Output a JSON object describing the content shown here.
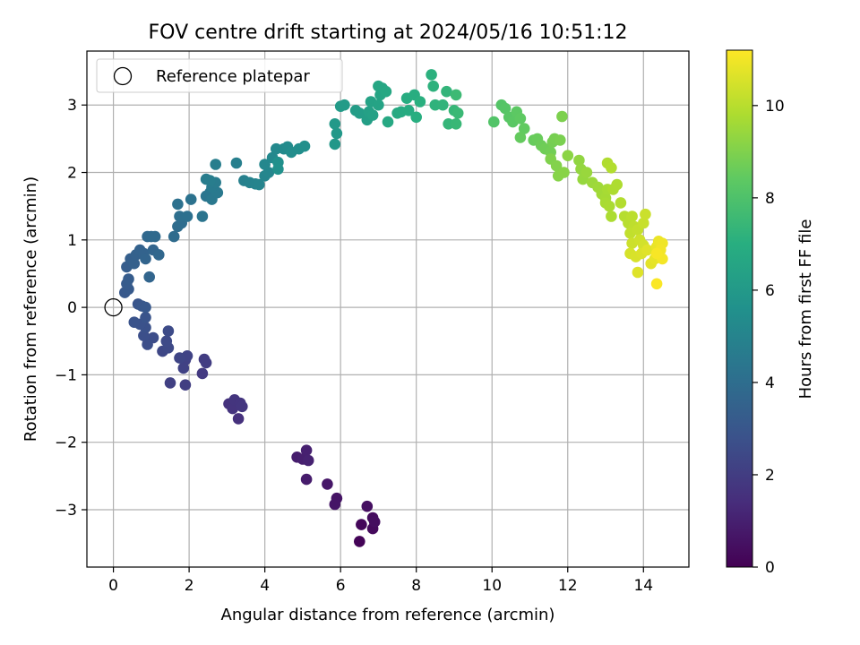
{
  "chart_data": {
    "type": "scatter",
    "title": "FOV centre drift starting at 2024/05/16 10:51:12",
    "xlabel": "Angular distance from reference (arcmin)",
    "ylabel": "Rotation from reference (arcmin)",
    "xlim": [
      -0.7,
      15.2
    ],
    "ylim": [
      -3.85,
      3.8
    ],
    "x_ticks": [
      0,
      2,
      4,
      6,
      8,
      10,
      12,
      14
    ],
    "y_ticks": [
      -3,
      -2,
      -1,
      0,
      1,
      2,
      3
    ],
    "x_tick_labels": [
      "0",
      "2",
      "4",
      "6",
      "8",
      "10",
      "12",
      "14"
    ],
    "y_tick_labels": [
      "−3",
      "−2",
      "−1",
      "0",
      "1",
      "2",
      "3"
    ],
    "grid": true,
    "legend_position": "top-left",
    "legend": [
      "Reference platepar"
    ],
    "reference_point": {
      "x": 0,
      "y": 0
    },
    "colorbar": {
      "label": "Hours from first FF file",
      "range": [
        0,
        11.2
      ],
      "ticks": [
        0,
        2,
        4,
        6,
        8,
        10
      ],
      "tick_labels": [
        "0",
        "2",
        "4",
        "6",
        "8",
        "10"
      ],
      "colormap": "viridis"
    },
    "points": [
      {
        "x": 6.5,
        "y": -3.47,
        "c": 0.1
      },
      {
        "x": 6.55,
        "y": -3.22,
        "c": 0.2
      },
      {
        "x": 6.85,
        "y": -3.28,
        "c": 0.3
      },
      {
        "x": 6.85,
        "y": -3.12,
        "c": 0.35
      },
      {
        "x": 6.9,
        "y": -3.18,
        "c": 0.4
      },
      {
        "x": 6.7,
        "y": -2.95,
        "c": 0.45
      },
      {
        "x": 5.9,
        "y": -2.83,
        "c": 0.6
      },
      {
        "x": 5.85,
        "y": -2.92,
        "c": 0.65
      },
      {
        "x": 5.65,
        "y": -2.62,
        "c": 0.7
      },
      {
        "x": 5.1,
        "y": -2.55,
        "c": 0.85
      },
      {
        "x": 4.85,
        "y": -2.22,
        "c": 0.9
      },
      {
        "x": 5.0,
        "y": -2.25,
        "c": 0.95
      },
      {
        "x": 5.1,
        "y": -2.12,
        "c": 1.0
      },
      {
        "x": 5.15,
        "y": -2.27,
        "c": 1.05
      },
      {
        "x": 3.3,
        "y": -1.65,
        "c": 1.55
      },
      {
        "x": 3.05,
        "y": -1.43,
        "c": 1.6
      },
      {
        "x": 3.15,
        "y": -1.5,
        "c": 1.65
      },
      {
        "x": 3.2,
        "y": -1.37,
        "c": 1.7
      },
      {
        "x": 3.35,
        "y": -1.42,
        "c": 1.72
      },
      {
        "x": 3.4,
        "y": -1.47,
        "c": 1.75
      },
      {
        "x": 2.35,
        "y": -0.98,
        "c": 1.9
      },
      {
        "x": 2.4,
        "y": -0.77,
        "c": 1.95
      },
      {
        "x": 2.45,
        "y": -0.82,
        "c": 2.0
      },
      {
        "x": 1.9,
        "y": -1.15,
        "c": 2.05
      },
      {
        "x": 1.5,
        "y": -1.12,
        "c": 2.1
      },
      {
        "x": 1.9,
        "y": -0.78,
        "c": 2.15
      },
      {
        "x": 1.85,
        "y": -0.9,
        "c": 2.2
      },
      {
        "x": 1.95,
        "y": -0.72,
        "c": 2.25
      },
      {
        "x": 1.75,
        "y": -0.75,
        "c": 2.3
      },
      {
        "x": 1.3,
        "y": -0.65,
        "c": 2.4
      },
      {
        "x": 1.45,
        "y": -0.6,
        "c": 2.45
      },
      {
        "x": 1.4,
        "y": -0.5,
        "c": 2.5
      },
      {
        "x": 1.45,
        "y": -0.35,
        "c": 2.55
      },
      {
        "x": 1.05,
        "y": -0.45,
        "c": 2.6
      },
      {
        "x": 0.9,
        "y": -0.55,
        "c": 2.65
      },
      {
        "x": 0.8,
        "y": -0.42,
        "c": 2.7
      },
      {
        "x": 0.85,
        "y": -0.3,
        "c": 2.75
      },
      {
        "x": 0.7,
        "y": -0.25,
        "c": 2.8
      },
      {
        "x": 0.55,
        "y": -0.22,
        "c": 2.85
      },
      {
        "x": 0.85,
        "y": -0.15,
        "c": 2.9
      },
      {
        "x": 0.65,
        "y": 0.05,
        "c": 2.95
      },
      {
        "x": 0.75,
        "y": 0.02,
        "c": 3.0
      },
      {
        "x": 0.85,
        "y": 0.0,
        "c": 3.05
      },
      {
        "x": 0.3,
        "y": 0.22,
        "c": 3.1
      },
      {
        "x": 0.4,
        "y": 0.27,
        "c": 3.15
      },
      {
        "x": 0.35,
        "y": 0.35,
        "c": 3.2
      },
      {
        "x": 0.4,
        "y": 0.42,
        "c": 3.25
      },
      {
        "x": 0.35,
        "y": 0.6,
        "c": 3.3
      },
      {
        "x": 0.45,
        "y": 0.72,
        "c": 3.35
      },
      {
        "x": 0.55,
        "y": 0.65,
        "c": 3.4
      },
      {
        "x": 0.6,
        "y": 0.78,
        "c": 3.45
      },
      {
        "x": 0.7,
        "y": 0.85,
        "c": 3.5
      },
      {
        "x": 0.8,
        "y": 0.8,
        "c": 3.55
      },
      {
        "x": 0.85,
        "y": 0.72,
        "c": 3.6
      },
      {
        "x": 0.95,
        "y": 0.45,
        "c": 3.62
      },
      {
        "x": 1.05,
        "y": 0.85,
        "c": 3.65
      },
      {
        "x": 1.2,
        "y": 0.78,
        "c": 3.7
      },
      {
        "x": 0.9,
        "y": 1.05,
        "c": 3.75
      },
      {
        "x": 1.0,
        "y": 1.05,
        "c": 3.8
      },
      {
        "x": 1.1,
        "y": 1.05,
        "c": 3.85
      },
      {
        "x": 1.6,
        "y": 1.05,
        "c": 3.9
      },
      {
        "x": 1.7,
        "y": 1.2,
        "c": 3.95
      },
      {
        "x": 1.8,
        "y": 1.25,
        "c": 4.0
      },
      {
        "x": 1.75,
        "y": 1.35,
        "c": 4.05
      },
      {
        "x": 1.95,
        "y": 1.35,
        "c": 4.1
      },
      {
        "x": 1.7,
        "y": 1.53,
        "c": 4.15
      },
      {
        "x": 2.05,
        "y": 1.6,
        "c": 4.2
      },
      {
        "x": 2.35,
        "y": 1.35,
        "c": 4.3
      },
      {
        "x": 2.45,
        "y": 1.65,
        "c": 4.35
      },
      {
        "x": 2.55,
        "y": 1.7,
        "c": 4.4
      },
      {
        "x": 2.6,
        "y": 1.6,
        "c": 4.45
      },
      {
        "x": 2.75,
        "y": 1.7,
        "c": 4.5
      },
      {
        "x": 2.6,
        "y": 1.78,
        "c": 4.55
      },
      {
        "x": 2.7,
        "y": 1.85,
        "c": 4.6
      },
      {
        "x": 2.45,
        "y": 1.9,
        "c": 4.65
      },
      {
        "x": 2.55,
        "y": 1.88,
        "c": 4.7
      },
      {
        "x": 2.7,
        "y": 2.12,
        "c": 4.75
      },
      {
        "x": 3.25,
        "y": 2.14,
        "c": 4.8
      },
      {
        "x": 3.45,
        "y": 1.88,
        "c": 4.85
      },
      {
        "x": 3.6,
        "y": 1.85,
        "c": 4.9
      },
      {
        "x": 3.75,
        "y": 1.83,
        "c": 4.95
      },
      {
        "x": 3.85,
        "y": 1.82,
        "c": 5.0
      },
      {
        "x": 4.0,
        "y": 1.95,
        "c": 5.05
      },
      {
        "x": 4.1,
        "y": 2.0,
        "c": 5.1
      },
      {
        "x": 4.0,
        "y": 2.12,
        "c": 5.15
      },
      {
        "x": 4.2,
        "y": 2.22,
        "c": 5.2
      },
      {
        "x": 4.3,
        "y": 2.35,
        "c": 5.25
      },
      {
        "x": 4.5,
        "y": 2.35,
        "c": 5.3
      },
      {
        "x": 4.6,
        "y": 2.38,
        "c": 5.35
      },
      {
        "x": 4.7,
        "y": 2.3,
        "c": 5.4
      },
      {
        "x": 4.9,
        "y": 2.35,
        "c": 5.45
      },
      {
        "x": 5.05,
        "y": 2.39,
        "c": 5.5
      },
      {
        "x": 4.35,
        "y": 2.15,
        "c": 5.55
      },
      {
        "x": 4.35,
        "y": 2.05,
        "c": 5.6
      },
      {
        "x": 5.85,
        "y": 2.42,
        "c": 5.9
      },
      {
        "x": 5.9,
        "y": 2.58,
        "c": 5.95
      },
      {
        "x": 5.85,
        "y": 2.72,
        "c": 6.0
      },
      {
        "x": 6.0,
        "y": 2.98,
        "c": 6.05
      },
      {
        "x": 6.1,
        "y": 3.0,
        "c": 6.1
      },
      {
        "x": 6.4,
        "y": 2.92,
        "c": 6.15
      },
      {
        "x": 6.5,
        "y": 2.88,
        "c": 6.2
      },
      {
        "x": 6.7,
        "y": 2.78,
        "c": 6.25
      },
      {
        "x": 6.75,
        "y": 2.9,
        "c": 6.3
      },
      {
        "x": 6.85,
        "y": 2.85,
        "c": 6.35
      },
      {
        "x": 6.8,
        "y": 3.05,
        "c": 6.4
      },
      {
        "x": 7.0,
        "y": 3.0,
        "c": 6.45
      },
      {
        "x": 7.05,
        "y": 3.15,
        "c": 6.5
      },
      {
        "x": 7.1,
        "y": 3.25,
        "c": 6.55
      },
      {
        "x": 7.0,
        "y": 3.28,
        "c": 6.6
      },
      {
        "x": 7.2,
        "y": 3.2,
        "c": 6.65
      },
      {
        "x": 7.25,
        "y": 2.75,
        "c": 6.7
      },
      {
        "x": 7.5,
        "y": 2.88,
        "c": 6.75
      },
      {
        "x": 7.6,
        "y": 2.9,
        "c": 6.8
      },
      {
        "x": 7.8,
        "y": 2.92,
        "c": 6.85
      },
      {
        "x": 7.75,
        "y": 3.1,
        "c": 6.9
      },
      {
        "x": 7.95,
        "y": 3.15,
        "c": 6.95
      },
      {
        "x": 8.0,
        "y": 2.82,
        "c": 7.0
      },
      {
        "x": 8.1,
        "y": 3.05,
        "c": 7.05
      },
      {
        "x": 8.4,
        "y": 3.45,
        "c": 7.1
      },
      {
        "x": 8.45,
        "y": 3.28,
        "c": 7.15
      },
      {
        "x": 8.5,
        "y": 3.0,
        "c": 7.2
      },
      {
        "x": 8.7,
        "y": 3.0,
        "c": 7.25
      },
      {
        "x": 8.8,
        "y": 3.2,
        "c": 7.3
      },
      {
        "x": 8.85,
        "y": 2.72,
        "c": 7.35
      },
      {
        "x": 9.0,
        "y": 2.92,
        "c": 7.4
      },
      {
        "x": 9.05,
        "y": 2.72,
        "c": 7.45
      },
      {
        "x": 9.1,
        "y": 2.88,
        "c": 7.5
      },
      {
        "x": 9.05,
        "y": 3.15,
        "c": 7.55
      },
      {
        "x": 10.05,
        "y": 2.75,
        "c": 8.1
      },
      {
        "x": 10.25,
        "y": 3.0,
        "c": 8.15
      },
      {
        "x": 10.35,
        "y": 2.95,
        "c": 8.2
      },
      {
        "x": 10.45,
        "y": 2.82,
        "c": 8.25
      },
      {
        "x": 10.55,
        "y": 2.75,
        "c": 8.3
      },
      {
        "x": 10.65,
        "y": 2.9,
        "c": 8.35
      },
      {
        "x": 10.75,
        "y": 2.8,
        "c": 8.4
      },
      {
        "x": 10.85,
        "y": 2.65,
        "c": 8.45
      },
      {
        "x": 10.75,
        "y": 2.52,
        "c": 8.5
      },
      {
        "x": 11.1,
        "y": 2.48,
        "c": 8.55
      },
      {
        "x": 11.2,
        "y": 2.5,
        "c": 8.6
      },
      {
        "x": 11.3,
        "y": 2.4,
        "c": 8.65
      },
      {
        "x": 11.4,
        "y": 2.35,
        "c": 8.7
      },
      {
        "x": 11.55,
        "y": 2.3,
        "c": 8.75
      },
      {
        "x": 11.6,
        "y": 2.45,
        "c": 8.8
      },
      {
        "x": 11.65,
        "y": 2.5,
        "c": 8.85
      },
      {
        "x": 11.8,
        "y": 2.48,
        "c": 8.9
      },
      {
        "x": 11.85,
        "y": 2.83,
        "c": 8.95
      },
      {
        "x": 11.55,
        "y": 2.2,
        "c": 9.0
      },
      {
        "x": 11.7,
        "y": 2.1,
        "c": 9.05
      },
      {
        "x": 11.75,
        "y": 1.95,
        "c": 9.1
      },
      {
        "x": 11.9,
        "y": 2.0,
        "c": 9.15
      },
      {
        "x": 12.0,
        "y": 2.25,
        "c": 9.2
      },
      {
        "x": 12.3,
        "y": 2.18,
        "c": 9.3
      },
      {
        "x": 12.35,
        "y": 2.05,
        "c": 9.35
      },
      {
        "x": 12.4,
        "y": 1.9,
        "c": 9.4
      },
      {
        "x": 12.5,
        "y": 2.0,
        "c": 9.45
      },
      {
        "x": 12.65,
        "y": 1.85,
        "c": 9.5
      },
      {
        "x": 12.8,
        "y": 1.78,
        "c": 9.55
      },
      {
        "x": 12.9,
        "y": 1.68,
        "c": 9.6
      },
      {
        "x": 13.0,
        "y": 1.62,
        "c": 9.65
      },
      {
        "x": 13.05,
        "y": 1.75,
        "c": 9.7
      },
      {
        "x": 13.0,
        "y": 1.55,
        "c": 9.72
      },
      {
        "x": 13.1,
        "y": 1.5,
        "c": 9.75
      },
      {
        "x": 13.15,
        "y": 1.35,
        "c": 9.78
      },
      {
        "x": 13.2,
        "y": 1.75,
        "c": 9.8
      },
      {
        "x": 13.3,
        "y": 1.82,
        "c": 9.82
      },
      {
        "x": 13.05,
        "y": 2.14,
        "c": 9.85
      },
      {
        "x": 13.15,
        "y": 2.07,
        "c": 9.88
      },
      {
        "x": 13.4,
        "y": 1.55,
        "c": 9.9
      },
      {
        "x": 13.5,
        "y": 1.35,
        "c": 9.95
      },
      {
        "x": 13.6,
        "y": 1.25,
        "c": 10.0
      },
      {
        "x": 13.7,
        "y": 1.35,
        "c": 10.05
      },
      {
        "x": 13.75,
        "y": 1.2,
        "c": 10.1
      },
      {
        "x": 13.65,
        "y": 1.1,
        "c": 10.15
      },
      {
        "x": 13.85,
        "y": 1.15,
        "c": 10.2
      },
      {
        "x": 14.0,
        "y": 1.25,
        "c": 10.25
      },
      {
        "x": 14.05,
        "y": 1.38,
        "c": 10.3
      },
      {
        "x": 13.7,
        "y": 0.95,
        "c": 10.35
      },
      {
        "x": 13.9,
        "y": 1.0,
        "c": 10.4
      },
      {
        "x": 14.0,
        "y": 0.92,
        "c": 10.45
      },
      {
        "x": 13.65,
        "y": 0.8,
        "c": 10.5
      },
      {
        "x": 13.8,
        "y": 0.75,
        "c": 10.55
      },
      {
        "x": 13.95,
        "y": 0.8,
        "c": 10.6
      },
      {
        "x": 13.85,
        "y": 0.52,
        "c": 10.65
      },
      {
        "x": 14.1,
        "y": 0.85,
        "c": 10.7
      },
      {
        "x": 14.2,
        "y": 0.65,
        "c": 10.75
      },
      {
        "x": 14.3,
        "y": 0.72,
        "c": 10.8
      },
      {
        "x": 14.35,
        "y": 0.9,
        "c": 10.85
      },
      {
        "x": 14.4,
        "y": 0.98,
        "c": 10.9
      },
      {
        "x": 14.5,
        "y": 0.95,
        "c": 10.95
      },
      {
        "x": 14.45,
        "y": 0.85,
        "c": 11.0
      },
      {
        "x": 14.5,
        "y": 0.72,
        "c": 11.05
      },
      {
        "x": 14.35,
        "y": 0.8,
        "c": 11.1
      },
      {
        "x": 14.35,
        "y": 0.35,
        "c": 11.15
      }
    ]
  }
}
